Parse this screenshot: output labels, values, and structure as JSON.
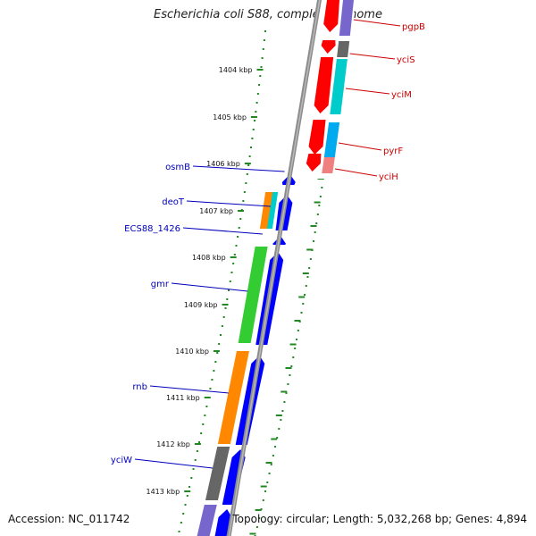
{
  "title": "Escherichia coli S88, complete genome",
  "accession": "Accession: NC_011742",
  "topology": "Topology: circular; Length: 5,032,268 bp; Genes: 4,894",
  "colors": {
    "label_forward": "#0000bb",
    "label_reverse": "#cc0000",
    "tick": "#228822",
    "backbone": "#8c8c8c"
  },
  "kbp_labels": [
    "1404 kbp",
    "1405 kbp",
    "1406 kbp",
    "1407 kbp",
    "1408 kbp",
    "1409 kbp",
    "1410 kbp",
    "1411 kbp",
    "1412 kbp",
    "1413 kbp"
  ],
  "genes_forward": [
    {
      "name": "osmB",
      "color": "#0000ff"
    },
    {
      "name": "deoT",
      "color": "#0000ff"
    },
    {
      "name": "ECS88_1426",
      "color": "#0000ff"
    },
    {
      "name": "gmr",
      "color": "#0000ff"
    },
    {
      "name": "rnb",
      "color": "#0000ff"
    },
    {
      "name": "yciW",
      "color": "#0000ff"
    }
  ],
  "genes_reverse": [
    {
      "name": "pgpB",
      "color": "#ff0000"
    },
    {
      "name": "yciS",
      "color": "#ff0000"
    },
    {
      "name": "yciM",
      "color": "#ff0000"
    },
    {
      "name": "pyrF",
      "color": "#ff0000"
    },
    {
      "name": "yciH",
      "color": "#ff0000"
    }
  ],
  "cog_colors": [
    "#ff8800",
    "#33cc33",
    "#666666",
    "#00cccc",
    "#00aaee",
    "#f08080",
    "#7766cc"
  ]
}
